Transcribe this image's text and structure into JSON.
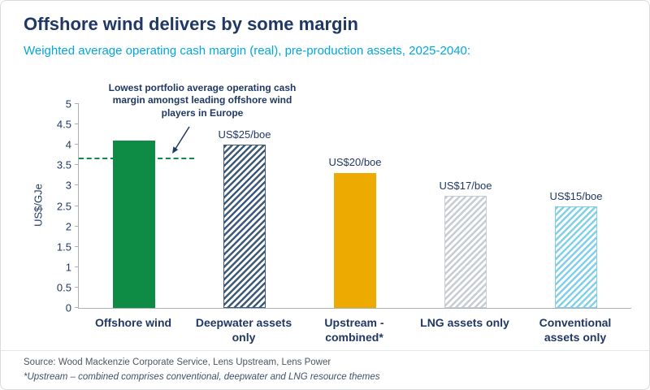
{
  "title": "Offshore wind delivers by some margin",
  "subtitle": "Weighted average operating cash margin (real), pre-production assets, 2025-2040:",
  "source": "Source: Wood Mackenzie Corporate Service, Lens Upstream, Lens Power",
  "footnote": "*Upstream – combined comprises conventional, deepwater and LNG resource themes",
  "colors": {
    "title_navy": "#1f3864",
    "subtitle_cyan": "#00a7e0",
    "green": "#0e8b45",
    "amber": "#edaa00",
    "deepwater_navy": "#3d5a7a",
    "lng_gray": "#c6ccd2",
    "conventional_blue": "#82cfe8"
  },
  "chart_data": {
    "type": "bar",
    "title": "Weighted average operating cash margin (real), pre-production assets, 2025-2040",
    "xlabel": "",
    "ylabel": "US$/GJe",
    "ylim": [
      0,
      5
    ],
    "ytick_step": 0.5,
    "grid": false,
    "legend": false,
    "categories": [
      "Offshore wind",
      "Deepwater assets only",
      "Upstream - combined*",
      "LNG assets only",
      "Conventional assets only"
    ],
    "values": [
      4.1,
      4.0,
      3.3,
      2.75,
      2.5
    ],
    "bar_labels": [
      "",
      "US$25/boe",
      "US$20/boe",
      "US$17/boe",
      "US$15/boe"
    ],
    "bar_styles": [
      {
        "type": "solid",
        "color": "#0e8b45"
      },
      {
        "type": "hatch",
        "color": "#3d5a7a"
      },
      {
        "type": "solid",
        "color": "#edaa00"
      },
      {
        "type": "hatch",
        "color": "#c6ccd2"
      },
      {
        "type": "hatch",
        "color": "#82cfe8"
      }
    ],
    "reference_line": {
      "value": 3.65,
      "color": "#0e8b45",
      "label": "Lowest portfolio average operating cash margin amongst leading offshore wind players in Europe"
    }
  }
}
